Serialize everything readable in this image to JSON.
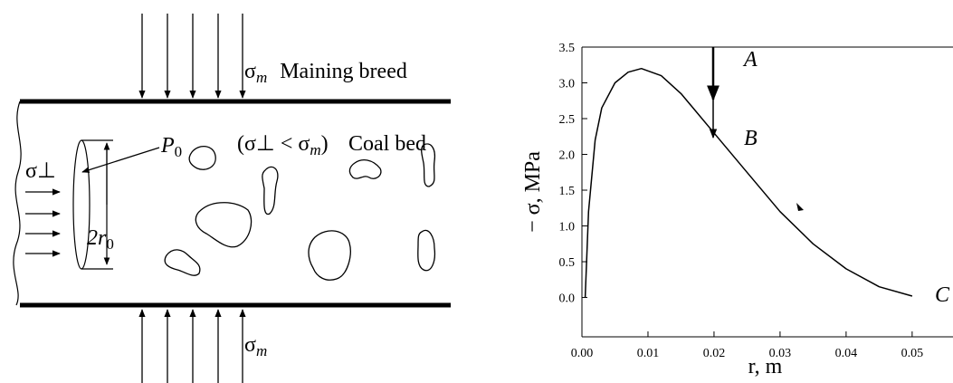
{
  "diagram": {
    "top_load": {
      "sym": "σ",
      "sub": "m",
      "text": "Maining breed"
    },
    "bottom_load": {
      "sym": "σ",
      "sub": "m"
    },
    "pressure": {
      "sym": "P",
      "sub": "0"
    },
    "condition": {
      "open": "(σ⊥ < σ",
      "sub": "m",
      "close": ")"
    },
    "bed": "Coal bed",
    "side_load": "σ⊥",
    "diameter": {
      "sym": "2r",
      "sub": "0"
    }
  },
  "chart_data": {
    "type": "line",
    "x_label": "r, m",
    "y_label": "− σ, MPa",
    "annotations": [
      "A",
      "B",
      "C"
    ],
    "xlim": [
      0,
      0.0555
    ],
    "ylim": [
      -0.55,
      3.5
    ],
    "xticks": [
      {
        "value": 0,
        "label": "0.00"
      },
      {
        "value": 0.01,
        "label": "0.01"
      },
      {
        "value": 0.02,
        "label": "0.02"
      },
      {
        "value": 0.03,
        "label": "0.03"
      },
      {
        "value": 0.04,
        "label": "0.04"
      },
      {
        "value": 0.05,
        "label": "0.05"
      }
    ],
    "yticks": [
      {
        "value": 0,
        "label": "0.0"
      },
      {
        "value": 0.5,
        "label": "0.5"
      },
      {
        "value": 1,
        "label": "1.0"
      },
      {
        "value": 1.5,
        "label": "1.5"
      },
      {
        "value": 2,
        "label": "2.0"
      },
      {
        "value": 2.5,
        "label": "2.5"
      },
      {
        "value": 3,
        "label": "3.0"
      },
      {
        "value": 3.5,
        "label": "3.5"
      }
    ],
    "series": [
      {
        "color": "#000000",
        "x": [
          0.0005,
          0.001,
          0.002,
          0.003,
          0.005,
          0.007,
          0.009,
          0.012,
          0.015,
          0.02,
          0.025,
          0.03,
          0.035,
          0.04,
          0.045,
          0.05
        ],
        "values": [
          0,
          1.2,
          2.2,
          2.65,
          3.0,
          3.15,
          3.2,
          3.1,
          2.85,
          2.3,
          1.75,
          1.2,
          0.75,
          0.4,
          0.15,
          0.02
        ]
      }
    ]
  }
}
